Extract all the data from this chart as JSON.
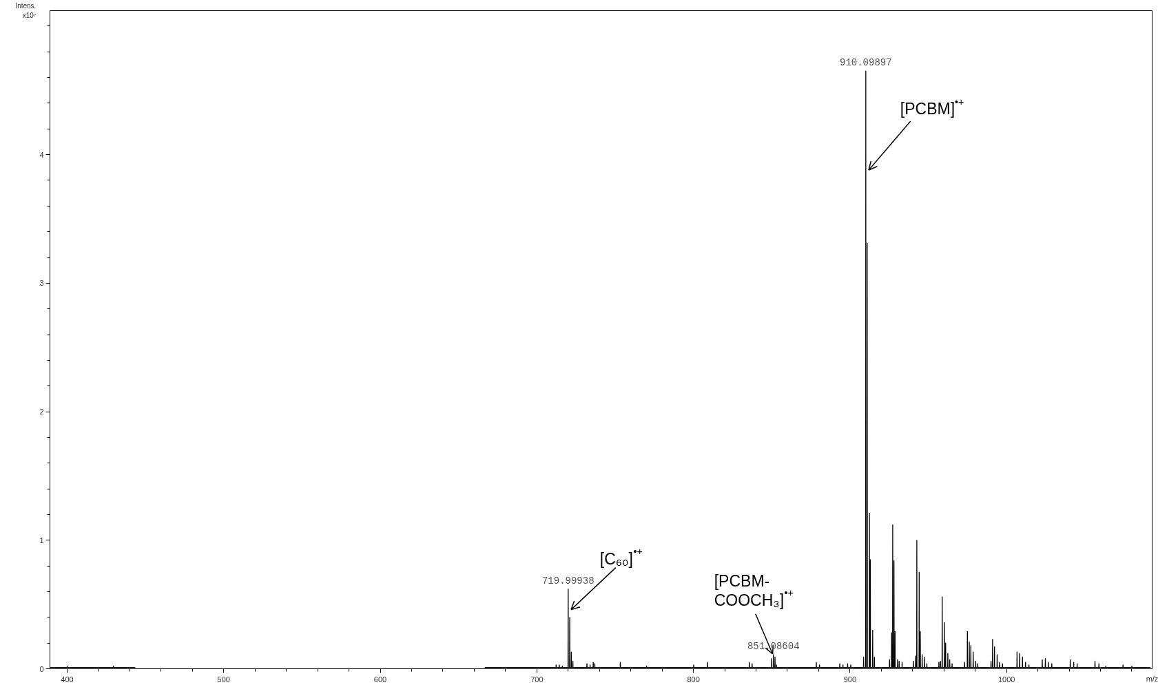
{
  "chart_data": {
    "type": "line",
    "ylabel": "Intens.\nx10⁷",
    "xlabel": "m/z",
    "xlim": [
      389,
      1093
    ],
    "ylim": [
      0,
      5.12
    ],
    "xticks": [
      400,
      {
        "value": 420,
        "label": null
      },
      {
        "value": 440,
        "label": null
      },
      {
        "value": 460,
        "label": null
      },
      {
        "value": 480,
        "label": null
      },
      500,
      {
        "value": 520,
        "label": null
      },
      {
        "value": 540,
        "label": null
      },
      {
        "value": 560,
        "label": null
      },
      {
        "value": 580,
        "label": null
      },
      600,
      {
        "value": 620,
        "label": null
      },
      {
        "value": 640,
        "label": null
      },
      {
        "value": 660,
        "label": null
      },
      {
        "value": 680,
        "label": null
      },
      700,
      {
        "value": 720,
        "label": null
      },
      {
        "value": 740,
        "label": null
      },
      {
        "value": 760,
        "label": null
      },
      {
        "value": 780,
        "label": null
      },
      800,
      {
        "value": 820,
        "label": null
      },
      {
        "value": 840,
        "label": null
      },
      {
        "value": 860,
        "label": null
      },
      {
        "value": 880,
        "label": null
      },
      900,
      {
        "value": 920,
        "label": null
      },
      {
        "value": 940,
        "label": null
      },
      {
        "value": 960,
        "label": null
      },
      {
        "value": 980,
        "label": null
      },
      1000,
      {
        "value": 1020,
        "label": null
      },
      {
        "value": 1040,
        "label": null
      },
      {
        "value": 1060,
        "label": null
      },
      {
        "value": 1080,
        "label": null
      }
    ],
    "yticks": [
      0,
      {
        "value": 0.2,
        "label": null
      },
      {
        "value": 0.4,
        "label": null
      },
      {
        "value": 0.6,
        "label": null
      },
      {
        "value": 0.8,
        "label": null
      },
      1,
      {
        "value": 1.2,
        "label": null
      },
      {
        "value": 1.4,
        "label": null
      },
      {
        "value": 1.6,
        "label": null
      },
      {
        "value": 1.8,
        "label": null
      },
      2,
      {
        "value": 2.2,
        "label": null
      },
      {
        "value": 2.4,
        "label": null
      },
      {
        "value": 2.6,
        "label": null
      },
      {
        "value": 2.8,
        "label": null
      },
      3,
      {
        "value": 3.2,
        "label": null
      },
      {
        "value": 3.4,
        "label": null
      },
      {
        "value": 3.6,
        "label": null
      },
      {
        "value": 3.8,
        "label": null
      },
      4,
      {
        "value": 4.2,
        "label": null
      },
      {
        "value": 4.4,
        "label": null
      },
      {
        "value": 4.6,
        "label": null
      },
      {
        "value": 4.8,
        "label": null
      },
      {
        "value": 5,
        "label": null
      }
    ],
    "annotations": [
      {
        "text": "910.09897",
        "x": 910.1,
        "y": 4.65
      },
      {
        "text": "[PCBM]$^{•+}$",
        "x": 910.1,
        "y": 3.88
      },
      {
        "text": "[C₆₀]$^{•+}$",
        "x": 720.0,
        "y": 0.46
      },
      {
        "text": "719.99938",
        "x": 720.0,
        "y": 0.62
      },
      {
        "text": "[PCBM-\nCOOCH₃]$^{•+}$",
        "x": 851.1,
        "y": 0.1
      },
      {
        "text": "851.08604",
        "x": 851.1,
        "y": 0.11
      }
    ],
    "x": [
      389,
      399.9,
      400.0,
      400.1,
      429.5,
      429.6,
      429.7,
      443.5,
      555,
      666.7,
      712.2,
      712.3,
      712.4,
      714.2,
      714.3,
      714.4,
      716.2,
      716.3,
      716.4,
      719.9,
      720.0,
      720.1,
      720.9,
      721.0,
      721.1,
      721.9,
      722.0,
      722.1,
      722.9,
      723.0,
      723.1,
      731.9,
      732.0,
      732.1,
      733.9,
      734.0,
      734.1,
      735.9,
      736.0,
      736.1,
      736.9,
      737.0,
      737.1,
      753.2,
      753.3,
      753.4,
      770.0,
      770.1,
      770.2,
      800.1,
      800.2,
      800.3,
      808.9,
      809.0,
      809.1,
      835.6,
      835.7,
      835.8,
      837.4,
      837.5,
      837.6,
      849.9,
      850.0,
      850.1,
      851.0,
      851.1,
      851.2,
      852.0,
      852.1,
      852.2,
      852.9,
      853.0,
      853.1,
      878.4,
      878.5,
      878.6,
      880.4,
      880.5,
      880.6,
      893.4,
      893.5,
      893.6,
      895.4,
      895.5,
      895.6,
      898.4,
      898.5,
      898.6,
      900.4,
      900.5,
      900.6,
      908.6,
      908.7,
      908.8,
      910.0,
      910.1,
      910.2,
      910.9,
      911.0,
      911.1,
      912.3,
      912.4,
      912.5,
      912.9,
      913.0,
      913.1,
      914.4,
      914.5,
      914.6,
      915.5,
      915.6,
      915.7,
      925.2,
      925.3,
      925.4,
      926.5,
      926.6,
      926.7,
      927.2,
      927.3,
      927.4,
      928.0,
      928.1,
      928.2,
      928.7,
      928.8,
      928.9,
      930.3,
      930.4,
      930.5,
      931.3,
      931.4,
      931.5,
      933.2,
      933.3,
      933.4,
      940.4,
      940.5,
      940.6,
      941.8,
      941.9,
      942.0,
      942.6,
      942.7,
      942.8,
      944.1,
      944.2,
      944.3,
      944.8,
      944.9,
      945.0,
      946.0,
      946.1,
      946.2,
      947.5,
      947.6,
      947.7,
      949.0,
      949.1,
      949.2,
      956.7,
      956.8,
      956.9,
      957.7,
      957.8,
      957.9,
      958.8,
      958.9,
      959.0,
      960.2,
      960.3,
      960.4,
      961.0,
      961.1,
      961.2,
      962.4,
      962.5,
      962.6,
      963.6,
      963.7,
      963.8,
      965.1,
      965.2,
      965.3,
      973.1,
      973.2,
      973.3,
      974.9,
      975.0,
      975.1,
      976.1,
      976.2,
      976.3,
      977.1,
      977.2,
      977.3,
      978.6,
      978.7,
      978.8,
      980.2,
      980.3,
      980.4,
      981.5,
      981.6,
      981.7,
      990.0,
      990.1,
      990.2,
      991.0,
      991.1,
      991.2,
      992.2,
      992.3,
      992.4,
      993.9,
      994.0,
      994.1,
      995.4,
      995.5,
      995.6,
      997.3,
      997.4,
      997.5,
      1006.6,
      1006.7,
      1006.8,
      1008.3,
      1008.4,
      1008.5,
      1010.1,
      1010.2,
      1010.3,
      1012.0,
      1012.1,
      1012.2,
      1014.2,
      1014.3,
      1014.4,
      1022.7,
      1022.8,
      1022.9,
      1024.7,
      1024.8,
      1024.9,
      1026.6,
      1026.7,
      1026.8,
      1028.8,
      1028.9,
      1029.0,
      1040.6,
      1040.7,
      1040.8,
      1042.8,
      1042.9,
      1043.0,
      1045.0,
      1045.1,
      1045.2,
      1056.4,
      1056.5,
      1056.6,
      1058.9,
      1059.0,
      1059.1,
      1063.3,
      1063.4,
      1063.5,
      1074.3,
      1074.4,
      1074.5,
      1079.9,
      1080.0,
      1080.1,
      1092
    ],
    "series": [
      {
        "color": "#000000",
        "values": [
          0.01,
          0.01,
          0.02,
          0.01,
          0.01,
          0.02,
          0.01,
          0.01,
          null,
          0.01,
          0.01,
          0.03,
          0.01,
          0.01,
          0.03,
          0.01,
          0.01,
          0.02,
          0.01,
          0.01,
          0.62,
          0.01,
          0.01,
          0.4,
          0.01,
          0.01,
          0.13,
          0.01,
          0.01,
          0.06,
          0.01,
          0.01,
          0.04,
          0.01,
          0.01,
          0.03,
          0.01,
          0.01,
          0.05,
          0.01,
          0.01,
          0.04,
          0.01,
          0.01,
          0.05,
          0.01,
          0.01,
          0.02,
          0.01,
          0.01,
          0.03,
          0.01,
          0.01,
          0.05,
          0.01,
          0.01,
          0.05,
          0.01,
          0.01,
          0.04,
          0.01,
          0.01,
          0.08,
          0.01,
          0.01,
          0.11,
          0.01,
          0.01,
          0.09,
          0.01,
          0.01,
          0.03,
          0.01,
          0.01,
          0.05,
          0.01,
          0.01,
          0.03,
          0.01,
          0.01,
          0.04,
          0.01,
          0.01,
          0.03,
          0.01,
          0.01,
          0.04,
          0.01,
          0.01,
          0.03,
          0.01,
          0.01,
          0.09,
          0.01,
          0.01,
          4.65,
          0.01,
          0.01,
          3.31,
          0.01,
          0.01,
          1.21,
          0.01,
          0.01,
          0.85,
          0.01,
          0.01,
          0.3,
          0.01,
          0.01,
          0.09,
          0.01,
          0.01,
          0.07,
          0.01,
          0.01,
          0.28,
          0.01,
          0.01,
          1.12,
          0.01,
          0.01,
          0.84,
          0.01,
          0.01,
          0.29,
          0.01,
          0.01,
          0.07,
          0.01,
          0.01,
          0.06,
          0.01,
          0.01,
          0.05,
          0.01,
          0.01,
          0.06,
          0.01,
          0.01,
          0.1,
          0.01,
          0.01,
          1.0,
          0.01,
          0.01,
          0.75,
          0.01,
          0.01,
          0.29,
          0.01,
          0.01,
          0.11,
          0.01,
          0.01,
          0.09,
          0.01,
          0.01,
          0.04,
          0.01,
          0.01,
          0.05,
          0.01,
          0.01,
          0.06,
          0.01,
          0.01,
          0.56,
          0.01,
          0.01,
          0.36,
          0.01,
          0.01,
          0.2,
          0.01,
          0.01,
          0.12,
          0.01,
          0.01,
          0.07,
          0.01,
          0.01,
          0.04,
          0.01,
          0.01,
          0.05,
          0.01,
          0.01,
          0.29,
          0.01,
          0.01,
          0.21,
          0.01,
          0.01,
          0.18,
          0.01,
          0.01,
          0.13,
          0.01,
          0.01,
          0.06,
          0.01,
          0.01,
          0.04,
          0.01,
          0.01,
          0.06,
          0.01,
          0.01,
          0.23,
          0.01,
          0.01,
          0.17,
          0.01,
          0.01,
          0.11,
          0.01,
          0.01,
          0.05,
          0.01,
          0.01,
          0.04,
          0.01,
          0.01,
          0.13,
          0.01,
          0.01,
          0.12,
          0.01,
          0.01,
          0.09,
          0.01,
          0.01,
          0.05,
          0.01,
          0.01,
          0.03,
          0.01,
          0.01,
          0.07,
          0.01,
          0.01,
          0.08,
          0.01,
          0.01,
          0.05,
          0.01,
          0.01,
          0.04,
          0.01,
          0.01,
          0.07,
          0.01,
          0.01,
          0.05,
          0.01,
          0.01,
          0.04,
          0.01,
          0.01,
          0.06,
          0.01,
          0.01,
          0.04,
          0.01,
          0.01,
          0.02,
          0.01,
          0.01,
          0.03,
          0.01,
          0.01,
          0.02,
          0.01,
          0.01
        ]
      }
    ]
  }
}
